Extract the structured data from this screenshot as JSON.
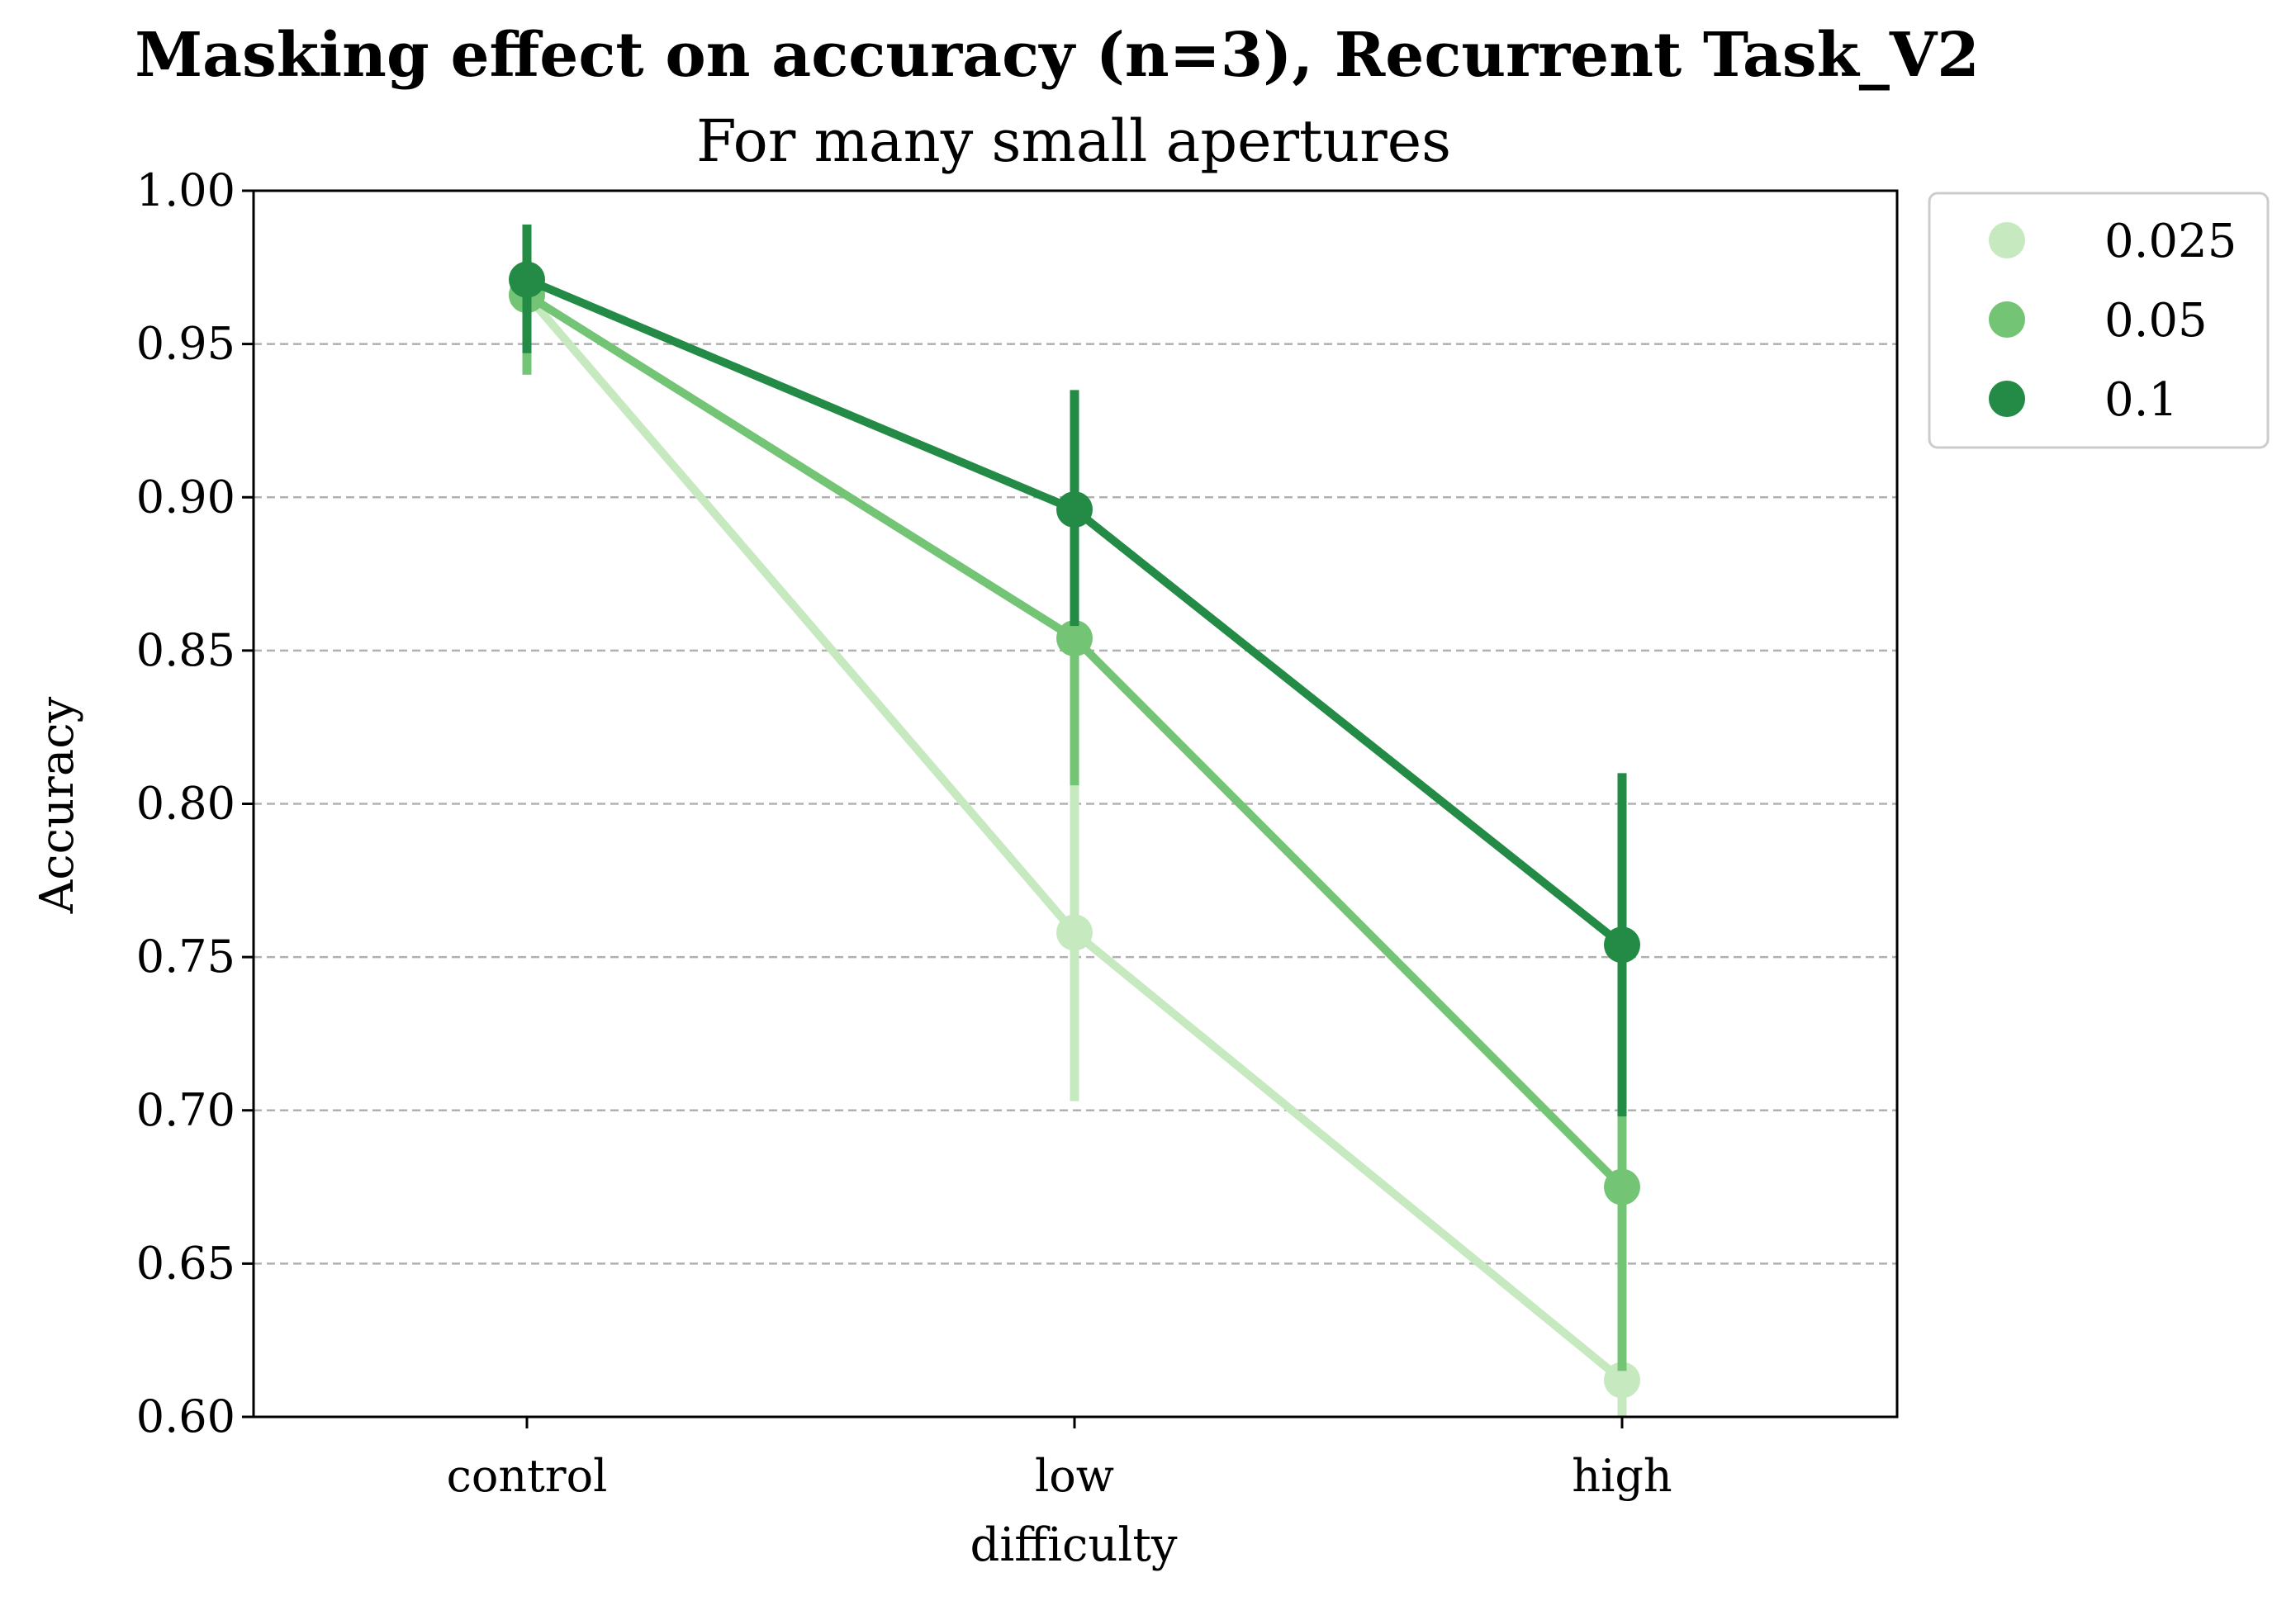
{
  "chart_data": {
    "type": "line",
    "title": "Masking effect on accuracy (n=3), Recurrent Task_V2",
    "subtitle": "For many small apertures",
    "xlabel": "difficulty",
    "ylabel": "Accuracy",
    "categories": [
      "control",
      "low",
      "high"
    ],
    "ylim": [
      0.6,
      1.0
    ],
    "yticks": [
      "0.60",
      "0.65",
      "0.70",
      "0.75",
      "0.80",
      "0.85",
      "0.90",
      "0.95",
      "1.00"
    ],
    "grid": "horizontal dashed",
    "legend_position": "outside top-right",
    "series": [
      {
        "name": "0.025",
        "color": "#c7e9c0",
        "values": [
          0.966,
          0.758,
          0.612
        ],
        "err_low": [
          0.94,
          0.703,
          0.59
        ],
        "err_high": [
          0.985,
          0.806,
          0.64
        ]
      },
      {
        "name": "0.05",
        "color": "#74c476",
        "values": [
          0.966,
          0.854,
          0.675
        ],
        "err_low": [
          0.94,
          0.806,
          0.615
        ],
        "err_high": [
          0.985,
          0.893,
          0.73
        ]
      },
      {
        "name": "0.1",
        "color": "#238b45",
        "values": [
          0.971,
          0.896,
          0.754
        ],
        "err_low": [
          0.947,
          0.858,
          0.698
        ],
        "err_high": [
          0.989,
          0.935,
          0.81
        ]
      }
    ]
  }
}
